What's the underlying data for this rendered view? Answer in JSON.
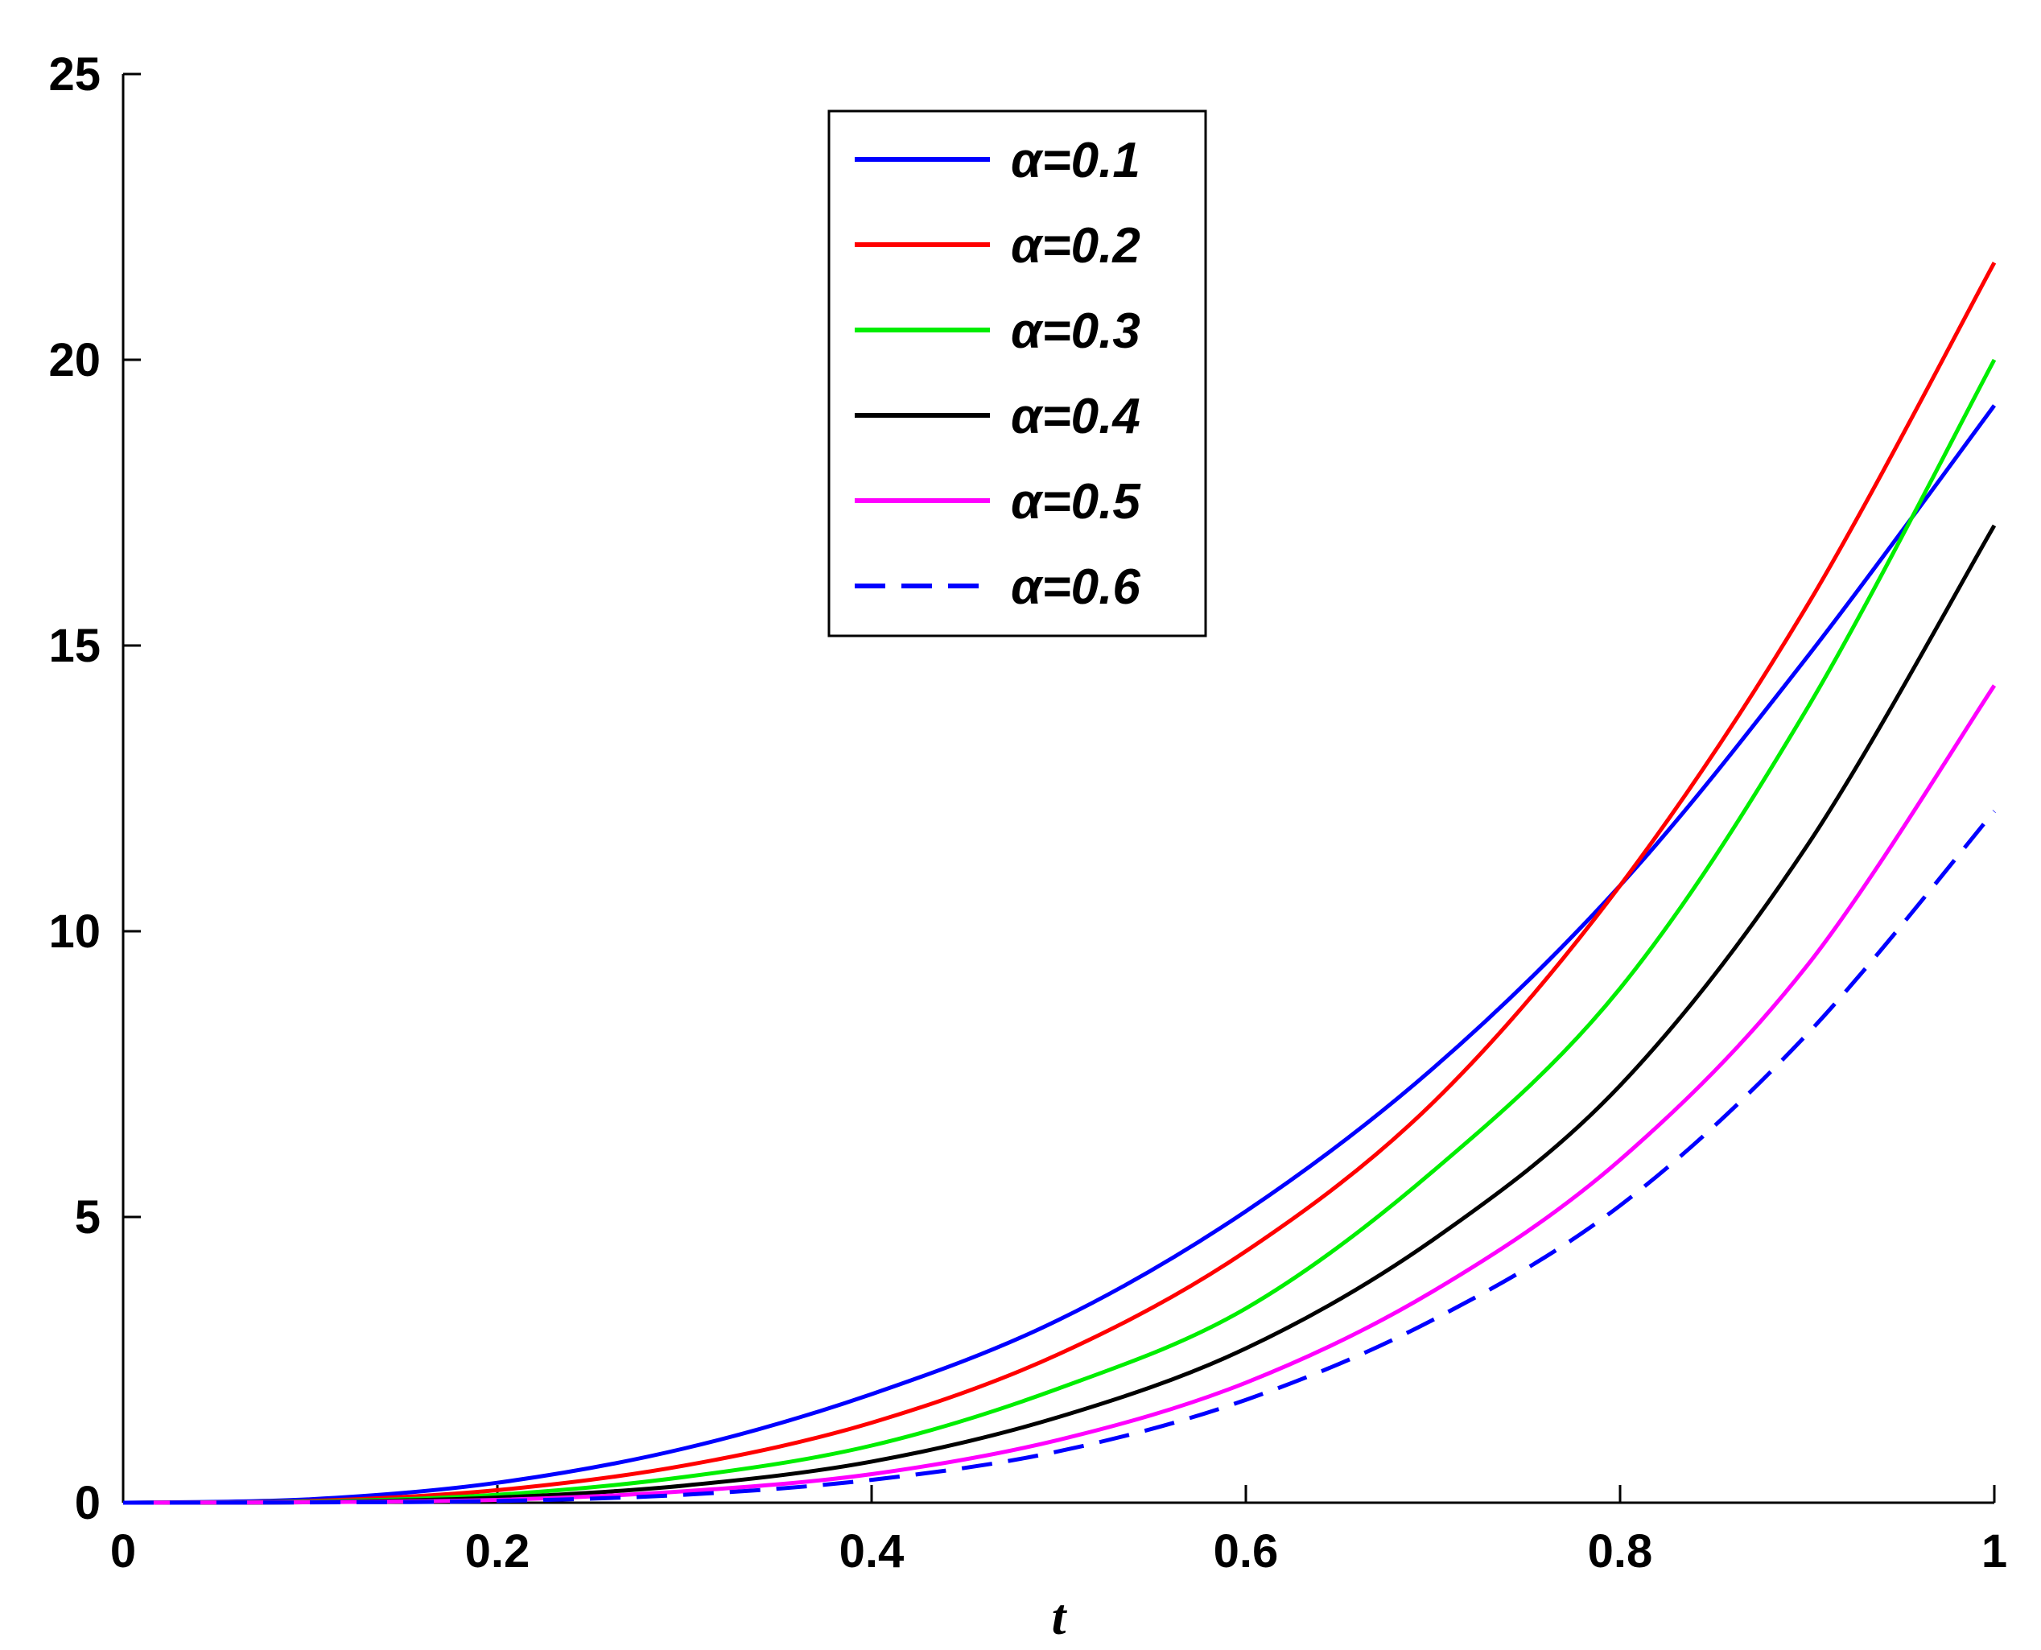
{
  "chart_data": {
    "type": "line",
    "title": "",
    "xlabel": "t",
    "ylabel": "",
    "xlim": [
      0,
      1
    ],
    "ylim": [
      0,
      25
    ],
    "xticks": [
      0,
      0.2,
      0.4,
      0.6,
      0.8,
      1
    ],
    "xtick_labels": [
      "0",
      "0.2",
      "0.4",
      "0.6",
      "0.8",
      "1"
    ],
    "yticks": [
      0,
      5,
      10,
      15,
      20,
      25
    ],
    "ytick_labels": [
      "0",
      "5",
      "10",
      "15",
      "20",
      "25"
    ],
    "grid": false,
    "legend_position": "top-center",
    "x": [
      0,
      0.1,
      0.2,
      0.3,
      0.4,
      0.5,
      0.6,
      0.7,
      0.8,
      0.9,
      1.0
    ],
    "series": [
      {
        "name": "α=0.1",
        "color": "#0000ff",
        "dash": "solid",
        "values": [
          0,
          0.06,
          0.35,
          0.95,
          1.9,
          3.2,
          5.1,
          7.6,
          10.8,
          14.8,
          19.2
        ]
      },
      {
        "name": "α=0.2",
        "color": "#ff0000",
        "dash": "solid",
        "values": [
          0,
          0.03,
          0.22,
          0.65,
          1.4,
          2.6,
          4.4,
          7.0,
          10.8,
          15.7,
          21.7
        ]
      },
      {
        "name": "α=0.3",
        "color": "#00ee00",
        "dash": "solid",
        "values": [
          0,
          0.02,
          0.14,
          0.45,
          1.0,
          2.0,
          3.4,
          5.8,
          9.0,
          13.9,
          20.0
        ]
      },
      {
        "name": "α=0.4",
        "color": "#000000",
        "dash": "solid",
        "values": [
          0,
          0.01,
          0.09,
          0.3,
          0.72,
          1.5,
          2.7,
          4.6,
          7.3,
          11.5,
          17.1
        ]
      },
      {
        "name": "α=0.5",
        "color": "#ff00ff",
        "dash": "solid",
        "values": [
          0,
          0.01,
          0.05,
          0.2,
          0.5,
          1.1,
          2.1,
          3.7,
          6.0,
          9.4,
          14.3
        ]
      },
      {
        "name": "α=0.6",
        "color": "#0000ff",
        "dash": "dashed",
        "values": [
          0,
          0.005,
          0.03,
          0.14,
          0.4,
          0.9,
          1.8,
          3.2,
          5.2,
          8.2,
          12.1
        ]
      }
    ]
  }
}
